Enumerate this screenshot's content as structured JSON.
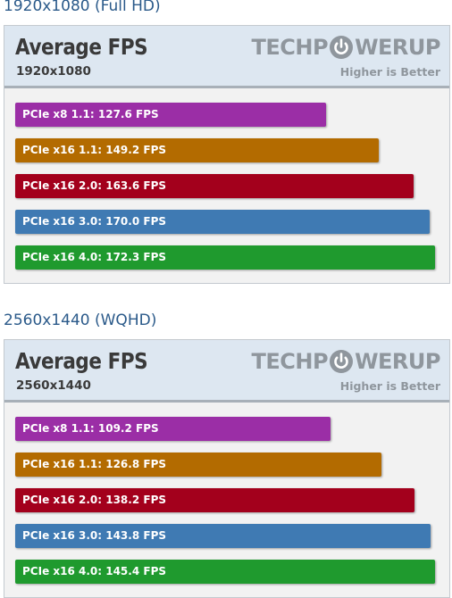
{
  "sections": [
    {
      "heading": "1920x1080 (Full HD)",
      "chart_title": "Average FPS",
      "chart_subtitle": "1920x1080",
      "logo": {
        "left": "TECHP",
        "right": "WERUP",
        "icon": "power-icon"
      },
      "note": "Higher is Better"
    },
    {
      "heading": "2560x1440 (WQHD)",
      "chart_title": "Average FPS",
      "chart_subtitle": "2560x1440",
      "logo": {
        "left": "TECHP",
        "right": "WERUP",
        "icon": "power-icon"
      },
      "note": "Higher is Better"
    }
  ],
  "colors": {
    "PCIe x8 1.1": "#9b2ea6",
    "PCIe x16 1.1": "#b36b00",
    "PCIe x16 2.0": "#a3001c",
    "PCIe x16 3.0": "#3f7ab3",
    "PCIe x16 4.0": "#1f9a2e"
  },
  "chart_data": [
    {
      "type": "bar",
      "orientation": "horizontal",
      "title": "Average FPS",
      "subtitle": "1920x1080",
      "categories": [
        "PCIe x8 1.1",
        "PCIe x16 1.1",
        "PCIe x16 2.0",
        "PCIe x16 3.0",
        "PCIe x16 4.0"
      ],
      "values": [
        127.6,
        149.2,
        163.6,
        170.0,
        172.3
      ],
      "labels": [
        "PCIe x8 1.1: 127.6 FPS",
        "PCIe x16 1.1: 149.2 FPS",
        "PCIe x16 2.0: 163.6 FPS",
        "PCIe x16 3.0: 170.0 FPS",
        "PCIe x16 4.0: 172.3 FPS"
      ],
      "xlim": [
        0,
        172.3
      ],
      "grid": false
    },
    {
      "type": "bar",
      "orientation": "horizontal",
      "title": "Average FPS",
      "subtitle": "2560x1440",
      "categories": [
        "PCIe x8 1.1",
        "PCIe x16 1.1",
        "PCIe x16 2.0",
        "PCIe x16 3.0",
        "PCIe x16 4.0"
      ],
      "values": [
        109.2,
        126.8,
        138.2,
        143.8,
        145.4
      ],
      "labels": [
        "PCIe x8 1.1: 109.2 FPS",
        "PCIe x16 1.1: 126.8 FPS",
        "PCIe x16 2.0: 138.2 FPS",
        "PCIe x16 3.0: 143.8 FPS",
        "PCIe x16 4.0: 145.4 FPS"
      ],
      "xlim": [
        0,
        145.4
      ],
      "grid": false
    }
  ]
}
